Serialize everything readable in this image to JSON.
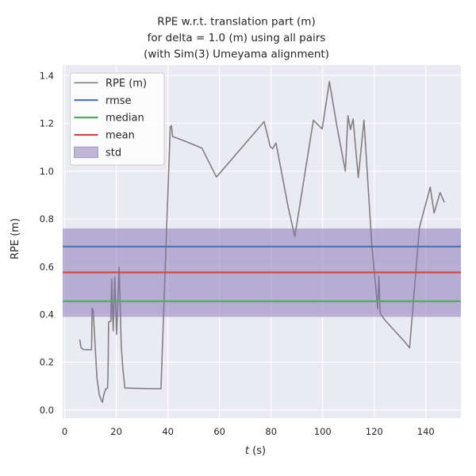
{
  "figure": {
    "title_lines": [
      "RPE w.r.t. translation part (m)",
      "for delta = 1.0 (m) using all pairs",
      "(with Sim(3) Umeyama alignment)"
    ]
  },
  "chart_data": {
    "type": "line",
    "title": "RPE w.r.t. translation part (m) for delta = 1.0 (m) using all pairs (with Sim(3) Umeyama alignment)",
    "xlabel": "t (s)",
    "xlabel_var": "t",
    "xlabel_unit": " (s)",
    "ylabel": "RPE (m)",
    "xlim": [
      -0.8,
      153.6
    ],
    "ylim": [
      -0.034,
      1.444
    ],
    "xticks": [
      0,
      20,
      40,
      60,
      80,
      100,
      120,
      140
    ],
    "ytick_labels": [
      "0.0",
      "0.2",
      "0.4",
      "0.6",
      "0.8",
      "1.0",
      "1.2",
      "1.4"
    ],
    "grid": true,
    "legend_position": "upper left",
    "series": [
      {
        "name": "RPE (m)",
        "type": "line",
        "color": "#808080",
        "points": [
          [
            5.8,
            0.295
          ],
          [
            6.3,
            0.262
          ],
          [
            7.2,
            0.253
          ],
          [
            10.4,
            0.252
          ],
          [
            10.6,
            0.427
          ],
          [
            11.0,
            0.418
          ],
          [
            12.5,
            0.135
          ],
          [
            13.4,
            0.062
          ],
          [
            14.0,
            0.046
          ],
          [
            14.6,
            0.032
          ],
          [
            15.2,
            0.065
          ],
          [
            15.9,
            0.088
          ],
          [
            16.6,
            0.091
          ],
          [
            16.8,
            0.158
          ],
          [
            17.0,
            0.368
          ],
          [
            17.9,
            0.372
          ],
          [
            18.2,
            0.548
          ],
          [
            18.8,
            0.332
          ],
          [
            19.4,
            0.556
          ],
          [
            20.1,
            0.316
          ],
          [
            21.1,
            0.598
          ],
          [
            21.9,
            0.27
          ],
          [
            22.5,
            0.175
          ],
          [
            22.9,
            0.135
          ],
          [
            23.3,
            0.092
          ],
          [
            30.0,
            0.09
          ],
          [
            37.3,
            0.089
          ],
          [
            40.9,
            1.185
          ],
          [
            41.4,
            1.19
          ],
          [
            41.8,
            1.145
          ],
          [
            46.0,
            1.128
          ],
          [
            53.2,
            1.096
          ],
          [
            58.8,
            0.975
          ],
          [
            77.3,
            1.207
          ],
          [
            79.7,
            1.102
          ],
          [
            80.6,
            1.094
          ],
          [
            81.9,
            1.118
          ],
          [
            86.6,
            0.85
          ],
          [
            89.2,
            0.726
          ],
          [
            96.4,
            1.213
          ],
          [
            99.8,
            1.177
          ],
          [
            102.6,
            1.375
          ],
          [
            105.5,
            1.19
          ],
          [
            108.8,
            1.0
          ],
          [
            109.8,
            1.232
          ],
          [
            110.8,
            1.174
          ],
          [
            111.8,
            1.218
          ],
          [
            113.8,
            0.973
          ],
          [
            116.0,
            1.213
          ],
          [
            119.0,
            0.7
          ],
          [
            121.3,
            0.425
          ],
          [
            121.8,
            0.56
          ],
          [
            122.3,
            0.405
          ],
          [
            124.0,
            0.378
          ],
          [
            128.0,
            0.33
          ],
          [
            131.7,
            0.287
          ],
          [
            133.7,
            0.26
          ],
          [
            137.5,
            0.764
          ],
          [
            141.7,
            0.933
          ],
          [
            143.2,
            0.825
          ],
          [
            145.5,
            0.91
          ],
          [
            147.2,
            0.869
          ]
        ]
      },
      {
        "name": "rmse",
        "type": "hline",
        "color": "#4c72b0",
        "value": 0.684
      },
      {
        "name": "median",
        "type": "hline",
        "color": "#55a868",
        "value": 0.455
      },
      {
        "name": "mean",
        "type": "hline",
        "color": "#c44e52",
        "value": 0.576
      },
      {
        "name": "std",
        "type": "hspan",
        "color": "#8172b2",
        "range": [
          0.39,
          0.76
        ]
      }
    ]
  },
  "colors": {
    "figure_bg": "#ffffff",
    "axes_bg": "#eaeaf2",
    "grid": "#ffffff",
    "text": "#262626",
    "legend_bg": "#ffffff",
    "legend_border": "#cccccc"
  }
}
